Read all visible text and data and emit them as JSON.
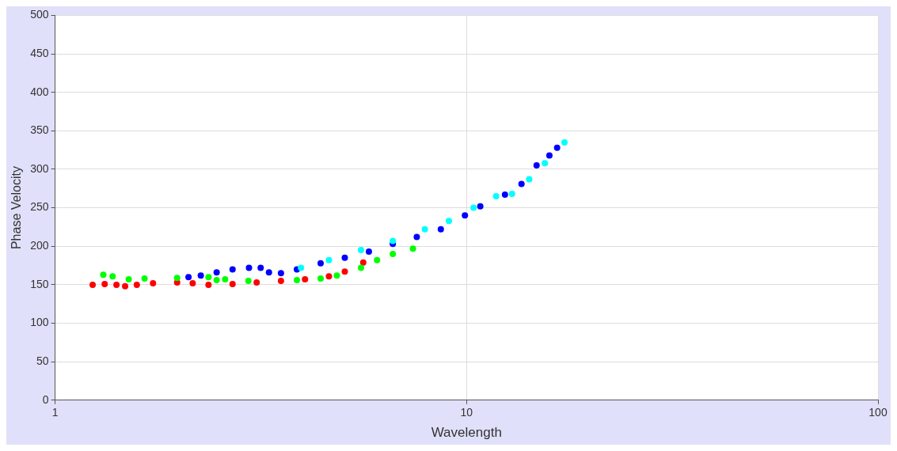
{
  "chart_data": {
    "type": "scatter",
    "xlabel": "Wavelength",
    "ylabel": "Phase Velocity",
    "log": "x",
    "xlim": [
      1,
      100
    ],
    "xticks": [
      1,
      10,
      100
    ],
    "ylim": [
      0,
      500
    ],
    "yticks": [
      0,
      50,
      100,
      150,
      200,
      250,
      300,
      350,
      400,
      450,
      500
    ],
    "grid": true,
    "legend": false,
    "marker": "circle",
    "series": [
      {
        "color": "#00ffff",
        "x": [
          3.96,
          4.63,
          5.54,
          6.62,
          7.92,
          9.06,
          10.4,
          11.8,
          12.9,
          14.2,
          15.5,
          17.3
        ],
        "values": [
          172,
          182,
          195,
          207,
          222,
          233,
          250,
          265,
          268,
          287,
          308,
          335
        ]
      },
      {
        "color": "#0000ff",
        "x": [
          2.11,
          2.26,
          2.47,
          2.7,
          2.96,
          3.16,
          3.31,
          3.54,
          3.87,
          4.42,
          5.06,
          5.79,
          6.62,
          7.57,
          8.66,
          9.91,
          10.8,
          12.4,
          13.6,
          14.8,
          15.9,
          16.6
        ],
        "values": [
          160,
          162,
          166,
          170,
          172,
          172,
          166,
          165,
          170,
          178,
          185,
          193,
          203,
          212,
          222,
          240,
          252,
          267,
          281,
          305,
          318,
          328
        ]
      },
      {
        "color": "#00ff00",
        "x": [
          1.31,
          1.38,
          1.51,
          1.65,
          1.98,
          2.36,
          2.47,
          2.59,
          2.95,
          3.87,
          4.42,
          4.84,
          5.54,
          6.06,
          6.62,
          7.41
        ],
        "values": [
          163,
          161,
          157,
          158,
          159,
          160,
          156,
          157,
          155,
          156,
          158,
          162,
          172,
          182,
          190,
          197
        ]
      },
      {
        "color": "#ff0000",
        "x": [
          1.234,
          1.32,
          1.41,
          1.48,
          1.58,
          1.73,
          1.98,
          2.16,
          2.36,
          2.7,
          3.09,
          3.54,
          4.05,
          4.63,
          5.06,
          5.61
        ],
        "values": [
          150,
          151,
          150,
          148,
          150,
          152,
          153,
          152,
          150,
          151,
          153,
          155,
          157,
          161,
          167,
          179
        ]
      }
    ]
  }
}
